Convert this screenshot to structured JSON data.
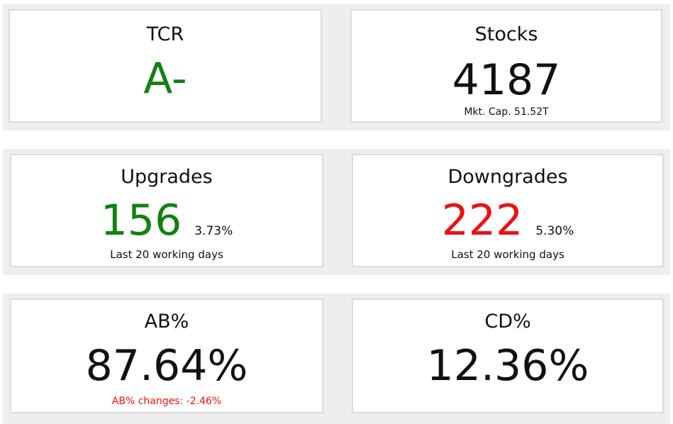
{
  "colors": {
    "positive": "#128012",
    "negative": "#ee1111",
    "neutral": "#111111"
  },
  "tcr": {
    "label": "TCR",
    "value": "A-"
  },
  "stocks": {
    "label": "Stocks",
    "value": "4187",
    "sub": "Mkt. Cap. 51.52T"
  },
  "upgrades": {
    "label": "Upgrades",
    "value": "156",
    "pct": "3.73%",
    "sub": "Last 20 working days"
  },
  "downgrades": {
    "label": "Downgrades",
    "value": "222",
    "pct": "5.30%",
    "sub": "Last 20 working days"
  },
  "ab": {
    "label": "AB%",
    "value": "87.64%",
    "sub": "AB% changes: -2.46%"
  },
  "cd": {
    "label": "CD%",
    "value": "12.36%"
  }
}
